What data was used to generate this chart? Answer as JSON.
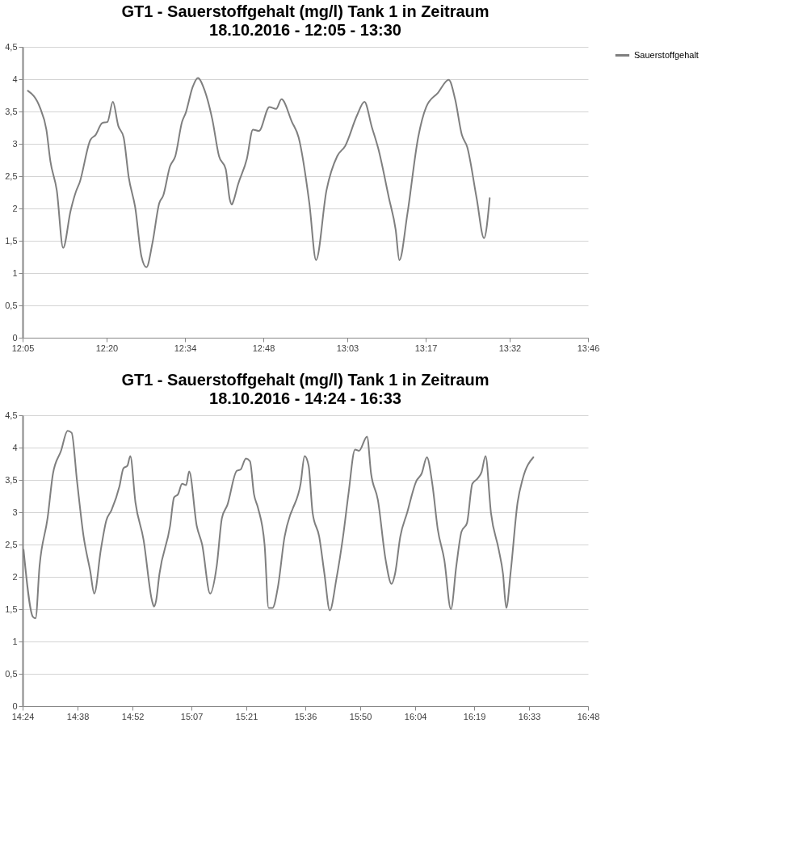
{
  "chart_data": [
    {
      "type": "line",
      "title": "GT1 - Sauerstoffgehalt (mg/l) Tank 1 in Zeitraum",
      "subtitle": "18.10.2016 - 12:05 - 13:30",
      "legend": "right",
      "grid": "y",
      "line_style": "solid",
      "marker": "none",
      "xlim": [
        12.0833,
        13.7667
      ],
      "xticks": [
        {
          "value": 12.0833,
          "label": "12:05"
        },
        {
          "value": 12.3333,
          "label": "12:20"
        },
        {
          "value": 12.5667,
          "label": "12:34"
        },
        {
          "value": 12.8,
          "label": "12:48"
        },
        {
          "value": 13.05,
          "label": "13:03"
        },
        {
          "value": 13.2833,
          "label": "13:17"
        },
        {
          "value": 13.5333,
          "label": "13:32"
        },
        {
          "value": 13.7667,
          "label": "13:46"
        }
      ],
      "ylim": [
        0,
        4.5
      ],
      "yticks": [
        0,
        {
          "value": 0.5,
          "label": "0,5"
        },
        1,
        {
          "value": 1.5,
          "label": "1,5"
        },
        2,
        {
          "value": 2.5,
          "label": "2,5"
        },
        3,
        {
          "value": 3.5,
          "label": "3,5"
        },
        4,
        {
          "value": 4.5,
          "label": "4,5"
        }
      ],
      "series": [
        {
          "name": "Sauerstoffgehalt",
          "color": "#7f7f7f",
          "x": [
            12.099,
            12.135,
            12.154,
            12.166,
            12.185,
            12.204,
            12.226,
            12.242,
            12.253,
            12.285,
            12.301,
            12.32,
            12.336,
            12.352,
            12.368,
            12.384,
            12.399,
            12.419,
            12.437,
            12.452,
            12.47,
            12.49,
            12.502,
            12.522,
            12.538,
            12.558,
            12.569,
            12.589,
            12.605,
            12.625,
            12.648,
            12.668,
            12.688,
            12.7,
            12.706,
            12.712,
            12.724,
            12.751,
            12.769,
            12.787,
            12.818,
            12.838,
            12.854,
            12.885,
            12.905,
            12.937,
            12.957,
            12.988,
            13.02,
            13.044,
            13.079,
            13.101,
            13.123,
            13.142,
            13.174,
            13.194,
            13.205,
            13.229,
            13.261,
            13.285,
            13.32,
            13.352,
            13.371,
            13.391,
            13.407,
            13.435,
            13.457,
            13.474
          ],
          "values": [
            3.82,
            3.56,
            3.22,
            2.73,
            2.28,
            1.39,
            1.96,
            2.26,
            2.4,
            3.06,
            3.14,
            3.32,
            3.34,
            3.65,
            3.28,
            3.1,
            2.49,
            2.0,
            1.26,
            1.09,
            1.47,
            2.08,
            2.2,
            2.65,
            2.81,
            3.34,
            3.48,
            3.87,
            4.02,
            3.83,
            3.38,
            2.81,
            2.61,
            2.14,
            2.06,
            2.13,
            2.36,
            2.77,
            3.22,
            3.2,
            3.57,
            3.54,
            3.69,
            3.34,
            3.1,
            2.08,
            1.2,
            2.28,
            2.81,
            2.97,
            3.44,
            3.65,
            3.26,
            2.93,
            2.16,
            1.67,
            1.2,
            1.92,
            3.1,
            3.57,
            3.79,
            3.99,
            3.69,
            3.14,
            2.95,
            2.16,
            1.54,
            2.16
          ]
        }
      ]
    },
    {
      "type": "line",
      "title": "GT1 - Sauerstoffgehalt (mg/l) Tank 1 in Zeitraum",
      "subtitle": "18.10.2016 - 14:24 - 16:33",
      "legend": "right",
      "grid": "y",
      "line_style": "solid",
      "marker": "none",
      "xlim": [
        14.4,
        16.8
      ],
      "xticks": [
        {
          "value": 14.4,
          "label": "14:24"
        },
        {
          "value": 14.6333,
          "label": "14:38"
        },
        {
          "value": 14.8667,
          "label": "14:52"
        },
        {
          "value": 15.1167,
          "label": "15:07"
        },
        {
          "value": 15.35,
          "label": "15:21"
        },
        {
          "value": 15.6,
          "label": "15:36"
        },
        {
          "value": 15.8333,
          "label": "15:50"
        },
        {
          "value": 16.0667,
          "label": "16:04"
        },
        {
          "value": 16.3167,
          "label": "16:19"
        },
        {
          "value": 16.55,
          "label": "16:33"
        },
        {
          "value": 16.8,
          "label": "16:48"
        }
      ],
      "ylim": [
        0,
        4.5
      ],
      "yticks": [
        0,
        {
          "value": 0.5,
          "label": "0,5"
        },
        1,
        {
          "value": 1.5,
          "label": "1,5"
        },
        2,
        {
          "value": 2.5,
          "label": "2,5"
        },
        3,
        {
          "value": 3.5,
          "label": "3,5"
        },
        4,
        {
          "value": 4.5,
          "label": "4,5"
        }
      ],
      "series": [
        {
          "name": "Sauerstoffgehalt",
          "color": "#7f7f7f",
          "x": [
            14.404,
            14.444,
            14.455,
            14.472,
            14.506,
            14.529,
            14.563,
            14.591,
            14.608,
            14.631,
            14.659,
            14.687,
            14.704,
            14.732,
            14.755,
            14.777,
            14.811,
            14.828,
            14.845,
            14.857,
            14.879,
            14.913,
            14.95,
            14.958,
            14.966,
            14.981,
            15.026,
            15.043,
            15.06,
            15.077,
            15.094,
            15.107,
            15.139,
            15.162,
            15.196,
            15.224,
            15.246,
            15.269,
            15.309,
            15.325,
            15.348,
            15.365,
            15.382,
            15.399,
            15.427,
            15.444,
            15.461,
            15.484,
            15.512,
            15.535,
            15.546,
            15.58,
            15.597,
            15.614,
            15.631,
            15.659,
            15.681,
            15.704,
            15.732,
            15.76,
            15.783,
            15.811,
            15.828,
            15.862,
            15.879,
            15.908,
            15.941,
            15.966,
            15.981,
            16.003,
            16.032,
            16.071,
            16.094,
            16.116,
            16.139,
            16.162,
            16.19,
            16.218,
            16.241,
            16.263,
            16.286,
            16.309,
            16.331,
            16.348,
            16.365,
            16.388,
            16.421,
            16.439,
            16.453,
            16.472,
            16.501,
            16.523,
            16.568
          ],
          "values": [
            2.42,
            1.38,
            1.36,
            2.17,
            2.91,
            3.6,
            3.95,
            4.26,
            4.23,
            3.48,
            2.62,
            2.09,
            1.74,
            2.42,
            2.87,
            3.03,
            3.4,
            3.68,
            3.72,
            3.87,
            3.15,
            2.58,
            1.62,
            1.54,
            1.62,
            2.05,
            2.79,
            3.23,
            3.28,
            3.44,
            3.42,
            3.63,
            2.79,
            2.5,
            1.74,
            2.17,
            2.91,
            3.11,
            3.64,
            3.66,
            3.83,
            3.79,
            3.28,
            3.07,
            2.5,
            1.52,
            1.52,
            1.85,
            2.62,
            2.95,
            3.05,
            3.44,
            3.87,
            3.72,
            2.99,
            2.62,
            2.05,
            1.48,
            1.97,
            2.62,
            3.28,
            3.97,
            3.95,
            4.17,
            3.6,
            3.19,
            2.26,
            1.89,
            2.05,
            2.62,
            2.99,
            3.48,
            3.6,
            3.85,
            3.44,
            2.74,
            2.26,
            1.5,
            2.17,
            2.7,
            2.83,
            3.44,
            3.52,
            3.62,
            3.87,
            2.99,
            2.42,
            2.05,
            1.52,
            2.09,
            3.15,
            3.52,
            3.85
          ]
        }
      ]
    }
  ]
}
